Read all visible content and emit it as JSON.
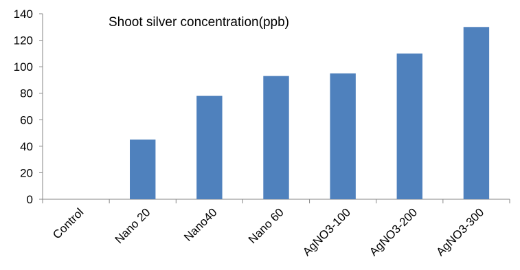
{
  "chart_data": {
    "type": "bar",
    "title": "Shoot silver concentration(ppb)",
    "xlabel": "",
    "ylabel": "",
    "categories": [
      "Control",
      "Nano 20",
      "Nano40",
      "Nano 60",
      "AgNO3-100",
      "AgNO3-200",
      "AgNO3-300"
    ],
    "values": [
      0,
      45,
      78,
      93,
      95,
      110,
      130
    ],
    "ylim": [
      0,
      140
    ],
    "yticks": [
      0,
      20,
      40,
      60,
      80,
      100,
      120,
      140
    ],
    "grid": false,
    "legend": "none",
    "bar_color": "#4F81BD",
    "axis_color": "#868686"
  }
}
